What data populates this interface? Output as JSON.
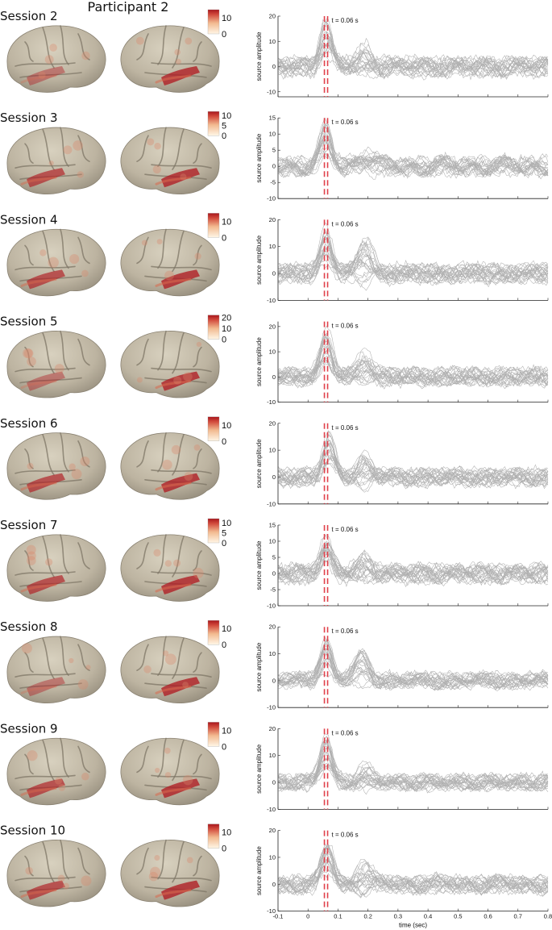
{
  "figure": {
    "title": "Participant 2",
    "colors": {
      "trace": "#6f6f6f",
      "marker": "#e0414b",
      "brain": "#b9b09e",
      "activation": "#b01c22"
    }
  },
  "chart_data": [
    {
      "type": "line",
      "session": "Session 2",
      "colorbar_ticks": [
        "10",
        "0"
      ],
      "colorbar_range": [
        0,
        15
      ],
      "x": {
        "label": "",
        "ticks": [],
        "range": [
          -0.1,
          0.8
        ]
      },
      "y": {
        "label": "source amplitude",
        "ticks": [
          "20",
          "10",
          "0",
          "-10"
        ],
        "range": [
          -12,
          20
        ]
      },
      "annotation": "t = 0.06 s",
      "marker_time": 0.06,
      "series_summary": {
        "peak_time": 0.06,
        "peak_max": 17,
        "peak_min": 5,
        "second_peak_time": 0.19,
        "second_peak_max": 9,
        "noise_amplitude": 6.5,
        "trough_min": -11
      }
    },
    {
      "type": "line",
      "session": "Session 3",
      "colorbar_ticks": [
        "10",
        "5",
        "0"
      ],
      "colorbar_range": [
        0,
        12
      ],
      "x": {
        "label": "",
        "ticks": [],
        "range": [
          -0.1,
          0.8
        ]
      },
      "y": {
        "label": "source amplitude",
        "ticks": [
          "15",
          "10",
          "5",
          "0",
          "-5",
          "-10"
        ],
        "range": [
          -10,
          15
        ]
      },
      "annotation": "t = 0.06 s",
      "marker_time": 0.06,
      "series_summary": {
        "peak_time": 0.06,
        "peak_max": 13,
        "peak_min": 4,
        "second_peak_time": 0.19,
        "second_peak_max": 7,
        "noise_amplitude": 5,
        "trough_min": -9
      }
    },
    {
      "type": "line",
      "session": "Session 4",
      "colorbar_ticks": [
        "10",
        "0"
      ],
      "colorbar_range": [
        0,
        15
      ],
      "x": {
        "label": "",
        "ticks": [],
        "range": [
          -0.1,
          0.8
        ]
      },
      "y": {
        "label": "source amplitude",
        "ticks": [
          "20",
          "10",
          "0",
          "-10"
        ],
        "range": [
          -10,
          20
        ]
      },
      "annotation": "t = 0.06 s",
      "marker_time": 0.06,
      "series_summary": {
        "peak_time": 0.06,
        "peak_max": 18,
        "peak_min": 6,
        "second_peak_time": 0.19,
        "second_peak_max": 15,
        "noise_amplitude": 6,
        "trough_min": -10
      }
    },
    {
      "type": "line",
      "session": "Session 5",
      "colorbar_ticks": [
        "20",
        "10",
        "0"
      ],
      "colorbar_range": [
        0,
        22
      ],
      "x": {
        "label": "",
        "ticks": [],
        "range": [
          -0.1,
          0.8
        ]
      },
      "y": {
        "label": "source amplitude",
        "ticks": [
          "20",
          "10",
          "0",
          "-10"
        ],
        "range": [
          -10,
          22
        ]
      },
      "annotation": "t = 0.06 s",
      "marker_time": 0.06,
      "series_summary": {
        "peak_time": 0.06,
        "peak_max": 19,
        "peak_min": 6,
        "second_peak_time": 0.19,
        "second_peak_max": 11,
        "noise_amplitude": 6,
        "trough_min": -8
      }
    },
    {
      "type": "line",
      "session": "Session 6",
      "colorbar_ticks": [
        "10",
        "0"
      ],
      "colorbar_range": [
        0,
        15
      ],
      "x": {
        "label": "",
        "ticks": [],
        "range": [
          -0.1,
          0.8
        ]
      },
      "y": {
        "label": "source amplitude",
        "ticks": [
          "20",
          "10",
          "0",
          "-10"
        ],
        "range": [
          -10,
          20
        ]
      },
      "annotation": "t = 0.06 s",
      "marker_time": 0.06,
      "series_summary": {
        "peak_time": 0.07,
        "peak_max": 15,
        "peak_min": 5,
        "second_peak_time": 0.19,
        "second_peak_max": 10,
        "noise_amplitude": 5.5,
        "trough_min": -9
      }
    },
    {
      "type": "line",
      "session": "Session 7",
      "colorbar_ticks": [
        "10",
        "5",
        "0"
      ],
      "colorbar_range": [
        0,
        12
      ],
      "x": {
        "label": "",
        "ticks": [],
        "range": [
          -0.1,
          0.8
        ]
      },
      "y": {
        "label": "source amplitude",
        "ticks": [
          "15",
          "10",
          "5",
          "0",
          "-5",
          "-10"
        ],
        "range": [
          -10,
          15
        ]
      },
      "annotation": "t = 0.06 s",
      "marker_time": 0.06,
      "series_summary": {
        "peak_time": 0.06,
        "peak_max": 12,
        "peak_min": 4,
        "second_peak_time": 0.19,
        "second_peak_max": 7,
        "noise_amplitude": 5,
        "trough_min": -8
      }
    },
    {
      "type": "line",
      "session": "Session 8",
      "colorbar_ticks": [
        "10",
        "0"
      ],
      "colorbar_range": [
        0,
        15
      ],
      "x": {
        "label": "",
        "ticks": [],
        "range": [
          -0.1,
          0.8
        ]
      },
      "y": {
        "label": "source amplitude",
        "ticks": [
          "20",
          "10",
          "0",
          "-10"
        ],
        "range": [
          -10,
          20
        ]
      },
      "annotation": "t = 0.06 s",
      "marker_time": 0.06,
      "series_summary": {
        "peak_time": 0.06,
        "peak_max": 17,
        "peak_min": 5,
        "second_peak_time": 0.18,
        "second_peak_max": 13,
        "noise_amplitude": 5,
        "trough_min": -9
      }
    },
    {
      "type": "line",
      "session": "Session 9",
      "colorbar_ticks": [
        "10",
        "0"
      ],
      "colorbar_range": [
        0,
        15
      ],
      "x": {
        "label": "",
        "ticks": [],
        "range": [
          -0.1,
          0.8
        ]
      },
      "y": {
        "label": "source amplitude",
        "ticks": [
          "20",
          "10",
          "0",
          "-10"
        ],
        "range": [
          -10,
          20
        ]
      },
      "annotation": "t = 0.06 s",
      "marker_time": 0.06,
      "series_summary": {
        "peak_time": 0.06,
        "peak_max": 18,
        "peak_min": 5,
        "second_peak_time": 0.19,
        "second_peak_max": 8,
        "noise_amplitude": 5,
        "trough_min": -8
      }
    },
    {
      "type": "line",
      "session": "Session 10",
      "colorbar_ticks": [
        "10",
        "0"
      ],
      "colorbar_range": [
        0,
        15
      ],
      "x": {
        "label": "time (sec)",
        "ticks": [
          "-0.1",
          "0",
          "0.1",
          "0.2",
          "0.3",
          "0.4",
          "0.5",
          "0.6",
          "0.7",
          "0.8"
        ],
        "range": [
          -0.1,
          0.8
        ]
      },
      "y": {
        "label": "source amplitude",
        "ticks": [
          "20",
          "10",
          "0",
          "-10"
        ],
        "range": [
          -10,
          20
        ]
      },
      "annotation": "t = 0.06 s",
      "marker_time": 0.06,
      "series_summary": {
        "peak_time": 0.065,
        "peak_max": 17,
        "peak_min": 6,
        "second_peak_time": 0.19,
        "second_peak_max": 10,
        "noise_amplitude": 5.5,
        "trough_min": -10
      }
    }
  ]
}
